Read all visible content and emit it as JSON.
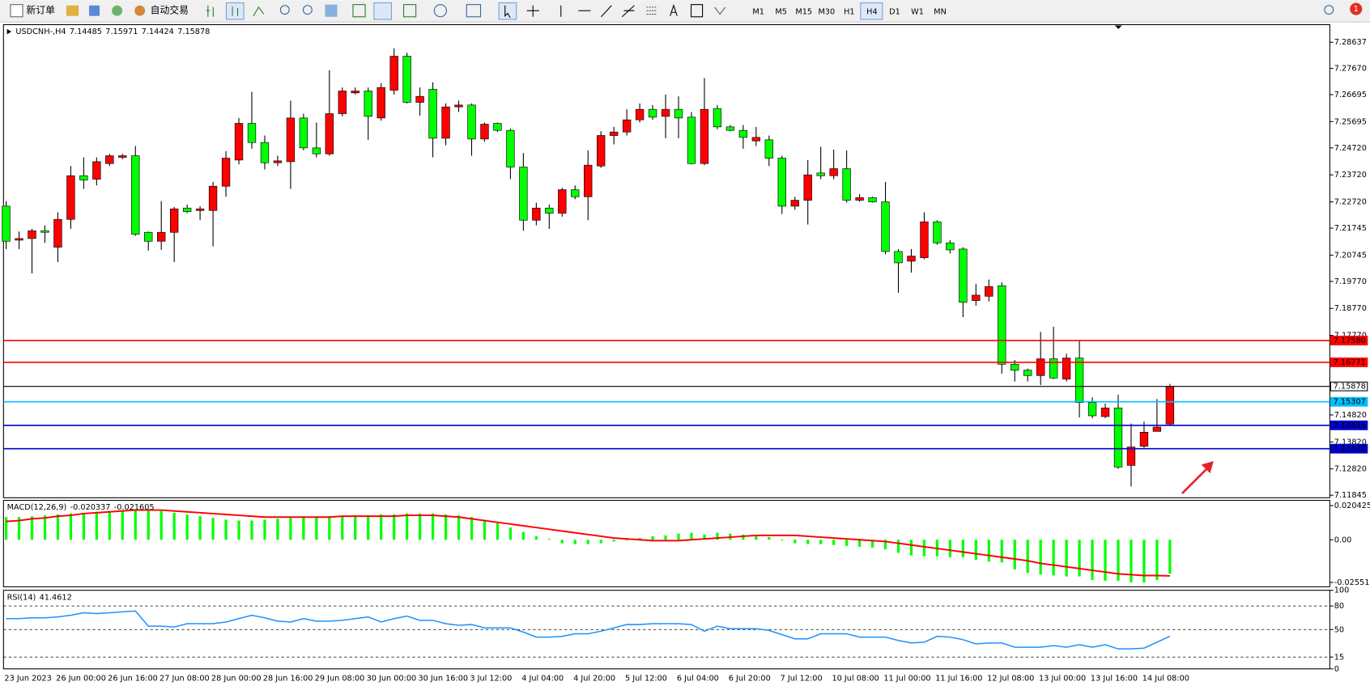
{
  "toolbar": {
    "new_order": "新订单",
    "auto_trading": "自动交易",
    "timeframes": [
      "M1",
      "M5",
      "M15",
      "M30",
      "H1",
      "H4",
      "D1",
      "W1",
      "MN"
    ],
    "notifications": 1
  },
  "chart_data": [
    {
      "type": "candlestick",
      "title": "USDCNH-,H4",
      "up_color": "#ff0000",
      "down_color": "#00ff00",
      "categories": [
        "23 Jun 2023",
        null,
        null,
        null,
        "26 Jun 00:00",
        null,
        null,
        null,
        "26 Jun 16:00",
        null,
        null,
        null,
        "27 Jun 08:00",
        null,
        null,
        null,
        "28 Jun 00:00",
        null,
        null,
        null,
        "28 Jun 16:00",
        null,
        null,
        null,
        "29 Jun 08:00",
        null,
        null,
        null,
        "30 Jun 00:00",
        null,
        null,
        null,
        "30 Jun 16:00",
        null,
        null,
        null,
        "3 Jul 12:00",
        null,
        null,
        null,
        "4 Jul 04:00",
        null,
        null,
        null,
        "4 Jul 20:00",
        null,
        null,
        null,
        "5 Jul 12:00",
        null,
        null,
        null,
        "6 Jul 04:00",
        null,
        null,
        null,
        "6 Jul 20:00",
        null,
        null,
        null,
        "7 Jul 12:00",
        null,
        null,
        null,
        "10 Jul 08:00",
        null,
        null,
        null,
        "11 Jul 00:00",
        null,
        null,
        null,
        "11 Jul 16:00",
        null,
        null,
        null,
        "12 Jul 08:00",
        null,
        null,
        null,
        "13 Jul 00:00",
        null,
        null,
        null,
        "13 Jul 16:00",
        null,
        null,
        null,
        "14 Jul 08:00",
        null,
        null
      ],
      "ohlc": [
        [
          7.2256,
          7.2275,
          7.2097,
          7.2126
        ],
        [
          7.213,
          7.2162,
          7.2097,
          7.2136
        ],
        [
          7.2136,
          7.2172,
          7.2007,
          7.2165
        ],
        [
          7.2165,
          7.2185,
          7.212,
          7.2159
        ],
        [
          7.2104,
          7.2233,
          7.2049,
          7.2207
        ],
        [
          7.2207,
          7.2405,
          7.2172,
          7.2369
        ],
        [
          7.2369,
          7.2437,
          7.232,
          7.2353
        ],
        [
          7.2356,
          7.2437,
          7.2333,
          7.2421
        ],
        [
          7.2414,
          7.245,
          7.2405,
          7.2443
        ],
        [
          7.2437,
          7.245,
          7.243,
          7.2443
        ],
        [
          7.2443,
          7.2479,
          7.2146,
          7.2152
        ],
        [
          7.2159,
          7.2162,
          7.2091,
          7.2126
        ],
        [
          7.2126,
          7.2275,
          7.2094,
          7.2159
        ],
        [
          7.2159,
          7.2253,
          7.2049,
          7.2246
        ],
        [
          7.2249,
          7.2262,
          7.223,
          7.2236
        ],
        [
          7.224,
          7.2256,
          7.2204,
          7.2246
        ],
        [
          7.224,
          7.2346,
          7.2107,
          7.233
        ],
        [
          7.233,
          7.246,
          7.2291,
          7.2434
        ],
        [
          7.2427,
          7.2583,
          7.2411,
          7.2563
        ],
        [
          7.2563,
          7.268,
          7.2469,
          7.2492
        ],
        [
          7.2492,
          7.2518,
          7.2392,
          7.2417
        ],
        [
          7.2417,
          7.2443,
          7.2405,
          7.2424
        ],
        [
          7.2421,
          7.2647,
          7.232,
          7.2583
        ],
        [
          7.2583,
          7.2599,
          7.2463,
          7.2472
        ],
        [
          7.2472,
          7.2566,
          7.2437,
          7.245
        ],
        [
          7.245,
          7.276,
          7.2443,
          7.2599
        ],
        [
          7.2599,
          7.2696,
          7.2589,
          7.2683
        ],
        [
          7.2676,
          7.2696,
          7.267,
          7.2683
        ],
        [
          7.2683,
          7.2696,
          7.2502,
          7.2589
        ],
        [
          7.2583,
          7.2712,
          7.2573,
          7.2696
        ],
        [
          7.2686,
          7.2841,
          7.267,
          7.2812
        ],
        [
          7.2812,
          7.2825,
          7.2637,
          7.2641
        ],
        [
          7.2641,
          7.2696,
          7.2592,
          7.2663
        ],
        [
          7.2689,
          7.2715,
          7.2437,
          7.2508
        ],
        [
          7.2508,
          7.2637,
          7.2482,
          7.2624
        ],
        [
          7.2624,
          7.2647,
          7.2605,
          7.2631
        ],
        [
          7.2631,
          7.2637,
          7.2443,
          7.2505
        ],
        [
          7.2505,
          7.2566,
          7.2495,
          7.256
        ],
        [
          7.2563,
          7.2566,
          7.2531,
          7.2537
        ],
        [
          7.2537,
          7.2544,
          7.2356,
          7.2401
        ],
        [
          7.2401,
          7.2453,
          7.2165,
          7.2204
        ],
        [
          7.2204,
          7.2269,
          7.2185,
          7.2249
        ],
        [
          7.2249,
          7.2262,
          7.2172,
          7.223
        ],
        [
          7.223,
          7.2324,
          7.2217,
          7.2317
        ],
        [
          7.2317,
          7.2333,
          7.2282,
          7.2291
        ],
        [
          7.2291,
          7.2463,
          7.2204,
          7.2408
        ],
        [
          7.2405,
          7.2534,
          7.2398,
          7.2518
        ],
        [
          7.2518,
          7.255,
          7.2485,
          7.2531
        ],
        [
          7.2531,
          7.2615,
          7.2518,
          7.2576
        ],
        [
          7.2576,
          7.2637,
          7.2566,
          7.2615
        ],
        [
          7.2615,
          7.2631,
          7.2576,
          7.2586
        ],
        [
          7.2589,
          7.267,
          7.2508,
          7.2615
        ],
        [
          7.2615,
          7.2663,
          7.2508,
          7.2583
        ],
        [
          7.2586,
          7.2605,
          7.2411,
          7.2414
        ],
        [
          7.2414,
          7.2731,
          7.2408,
          7.2615
        ],
        [
          7.2618,
          7.2631,
          7.2541,
          7.255
        ],
        [
          7.255,
          7.2557,
          7.2534,
          7.2537
        ],
        [
          7.2537,
          7.2557,
          7.2469,
          7.2511
        ],
        [
          7.2498,
          7.255,
          7.2479,
          7.2511
        ],
        [
          7.2502,
          7.2518,
          7.2405,
          7.2434
        ],
        [
          7.2434,
          7.2443,
          7.2227,
          7.2256
        ],
        [
          7.2256,
          7.2291,
          7.2243,
          7.2278
        ],
        [
          7.2278,
          7.2427,
          7.2188,
          7.2372
        ],
        [
          7.2379,
          7.2476,
          7.2356,
          7.2369
        ],
        [
          7.2369,
          7.2466,
          7.2356,
          7.2395
        ],
        [
          7.2395,
          7.2463,
          7.2269,
          7.2278
        ],
        [
          7.2278,
          7.2301,
          7.2272,
          7.2288
        ],
        [
          7.2288,
          7.2291,
          7.2269,
          7.2272
        ],
        [
          7.2272,
          7.2346,
          7.2078,
          7.2088
        ],
        [
          7.2088,
          7.2097,
          7.1935,
          7.2046
        ],
        [
          7.2052,
          7.2097,
          7.201,
          7.2071
        ],
        [
          7.2065,
          7.2233,
          7.2059,
          7.2198
        ],
        [
          7.2198,
          7.2204,
          7.2113,
          7.212
        ],
        [
          7.212,
          7.213,
          7.2081,
          7.2094
        ],
        [
          7.2097,
          7.2104,
          7.1845,
          7.19
        ],
        [
          7.1906,
          7.1968,
          7.1887,
          7.1926
        ],
        [
          7.1922,
          7.1984,
          7.1903,
          7.1958
        ],
        [
          7.1961,
          7.1974,
          7.1635,
          7.167
        ],
        [
          7.167,
          7.1686,
          7.1606,
          7.1648
        ],
        [
          7.1648,
          7.1654,
          7.1606,
          7.1628
        ],
        [
          7.1628,
          7.179,
          7.1593,
          7.169
        ],
        [
          7.169,
          7.1809,
          7.1615,
          7.1619
        ],
        [
          7.1615,
          7.1709,
          7.1606,
          7.1693
        ],
        [
          7.1693,
          7.1758,
          7.1473,
          7.1528
        ],
        [
          7.1528,
          7.1547,
          7.147,
          7.1479
        ],
        [
          7.1476,
          7.1524,
          7.147,
          7.1508
        ],
        [
          7.1508,
          7.1557,
          7.1282,
          7.1289
        ],
        [
          7.1295,
          7.145,
          7.1217,
          7.1363
        ],
        [
          7.1366,
          7.1457,
          7.136,
          7.1418
        ],
        [
          7.1421,
          7.1541,
          7.1421,
          7.1437
        ],
        [
          7.14485,
          7.15971,
          7.14424,
          7.15878
        ]
      ],
      "ylim": [
        7.1175,
        7.2929
      ],
      "yticks": [
        7.28637,
        {
          "value": 7.2767,
          "label": "7.27670"
        },
        7.26695,
        7.25695,
        {
          "value": 7.2472,
          "label": "7.24720"
        },
        {
          "value": 7.2372,
          "label": "7.23720"
        },
        {
          "value": 7.2272,
          "label": "7.22720"
        },
        7.21745,
        7.20745,
        {
          "value": 7.1977,
          "label": "7.19770"
        },
        {
          "value": 7.1877,
          "label": "7.18770"
        },
        {
          "value": 7.1777,
          "label": "7.17770"
        },
        {
          "value": 7.1482,
          "label": "7.14820"
        },
        {
          "value": 7.1382,
          "label": "7.13820"
        },
        {
          "value": 7.1282,
          "label": "7.12820"
        },
        7.11845
      ],
      "hlines": [
        {
          "value": 7.1758,
          "label": "7.17580",
          "color": "#ff0000"
        },
        {
          "value": 7.16771,
          "label": "7.16771",
          "color": "#ff0000"
        },
        {
          "value": 7.15878,
          "label": "7.15878",
          "color": "#000000"
        },
        {
          "value": 7.15307,
          "label": "7.15307",
          "color": "#00bfff"
        },
        {
          "value": 7.14435,
          "label": "7.14435",
          "color": "#0000cd"
        },
        {
          "value": 7.1357,
          "label": "7.13570",
          "color": "#0000cd"
        }
      ]
    },
    {
      "type": "macd",
      "title": "MACD(12,26,9)",
      "histogram_color": "#00ff00",
      "signal_color": "#ff0000",
      "histogram_values": [
        0.01357,
        0.01357,
        0.01409,
        0.01462,
        0.01514,
        0.01566,
        0.01618,
        0.0167,
        0.01723,
        0.01775,
        0.01827,
        0.01775,
        0.01723,
        0.01618,
        0.01514,
        0.01409,
        0.01305,
        0.01201,
        0.01148,
        0.01148,
        0.01201,
        0.01253,
        0.01305,
        0.01357,
        0.01357,
        0.01409,
        0.01409,
        0.01462,
        0.01462,
        0.01514,
        0.01514,
        0.01566,
        0.01566,
        0.01566,
        0.01514,
        0.01462,
        0.01357,
        0.01201,
        0.00992,
        0.00731,
        0.0047,
        0.00209,
        0.0005,
        -0.00209,
        -0.00261,
        -0.00261,
        -0.00209,
        -0.00104,
        -0.0005,
        0.00104,
        0.00209,
        0.00261,
        0.00365,
        0.00418,
        0.00313,
        0.00418,
        0.00365,
        0.00313,
        0.00209,
        0.00157,
        -0.00052,
        -0.00209,
        -0.00261,
        -0.00261,
        -0.00313,
        -0.00365,
        -0.00418,
        -0.0047,
        -0.00574,
        -0.00783,
        -0.0094,
        -0.00992,
        -0.00992,
        -0.01044,
        -0.01044,
        -0.01201,
        -0.01305,
        -0.01357,
        -0.01775,
        -0.01984,
        -0.02088,
        -0.0214,
        -0.02192,
        -0.02192,
        -0.02401,
        -0.02453,
        -0.02453,
        -0.025514,
        -0.0255,
        -0.02401,
        -0.020337
      ],
      "signal_values": [
        0.01096,
        0.01148,
        0.01253,
        0.01305,
        0.01409,
        0.01462,
        0.01566,
        0.01618,
        0.0167,
        0.01723,
        0.01775,
        0.01775,
        0.01775,
        0.01723,
        0.0167,
        0.01618,
        0.01566,
        0.01514,
        0.01462,
        0.01409,
        0.01357,
        0.01357,
        0.01357,
        0.01357,
        0.01357,
        0.01357,
        0.01409,
        0.01409,
        0.01409,
        0.01409,
        0.01409,
        0.01462,
        0.01462,
        0.01462,
        0.01409,
        0.01357,
        0.01253,
        0.01148,
        0.01044,
        0.0094,
        0.00835,
        0.00731,
        0.00626,
        0.00522,
        0.00418,
        0.00313,
        0.00209,
        0.00104,
        0.00052,
        0,
        -0.00052,
        -0.00052,
        -0.00052,
        0,
        0.00052,
        0.00104,
        0.00157,
        0.00209,
        0.00261,
        0.00261,
        0.00261,
        0.00261,
        0.00209,
        0.00157,
        0.00104,
        0.00052,
        0,
        -0.00052,
        -0.00104,
        -0.00209,
        -0.00313,
        -0.00418,
        -0.00522,
        -0.00626,
        -0.00731,
        -0.00835,
        -0.0094,
        -0.01044,
        -0.01148,
        -0.01253,
        -0.01409,
        -0.01514,
        -0.01618,
        -0.01723,
        -0.01827,
        -0.01931,
        -0.02036,
        -0.02088,
        -0.0214,
        -0.0214,
        -0.021605
      ],
      "ylim": [
        -0.02812,
        0.02356
      ],
      "yticks": [
        0.020425,
        {
          "value": 0,
          "label": "0.00"
        },
        -0.025514
      ]
    },
    {
      "type": "line",
      "title": "RSI(14)",
      "color": "#1e90ff",
      "values": [
        63.9,
        63.9,
        65.0,
        65.0,
        66.1,
        68.2,
        71.4,
        70.4,
        71.4,
        72.5,
        73.6,
        54.3,
        54.3,
        53.2,
        57.5,
        57.5,
        57.5,
        59.6,
        63.9,
        68.2,
        65.0,
        60.7,
        59.6,
        63.9,
        60.7,
        60.7,
        61.8,
        63.9,
        66.1,
        59.6,
        63.9,
        67.1,
        61.8,
        61.8,
        57.5,
        55.4,
        56.4,
        52.1,
        52.1,
        52.1,
        46.8,
        40.4,
        40.4,
        41.4,
        44.6,
        44.6,
        47.9,
        52.1,
        56.4,
        56.4,
        57.5,
        57.5,
        57.5,
        56.4,
        47.9,
        54.3,
        51.1,
        51.1,
        51.1,
        48.9,
        43.6,
        38.2,
        38.2,
        44.6,
        44.6,
        44.6,
        40.4,
        40.4,
        40.4,
        36.1,
        32.9,
        33.9,
        41.4,
        40.4,
        37.1,
        31.8,
        32.9,
        32.9,
        27.5,
        27.5,
        27.5,
        29.6,
        27.5,
        30.7,
        27.5,
        30.7,
        25.4,
        25.4,
        26.4,
        33.9,
        41.4612
      ],
      "ylim": [
        0,
        100
      ],
      "yticks": [
        0,
        15,
        50,
        80,
        100
      ],
      "levels": [
        15,
        50,
        80
      ]
    }
  ]
}
